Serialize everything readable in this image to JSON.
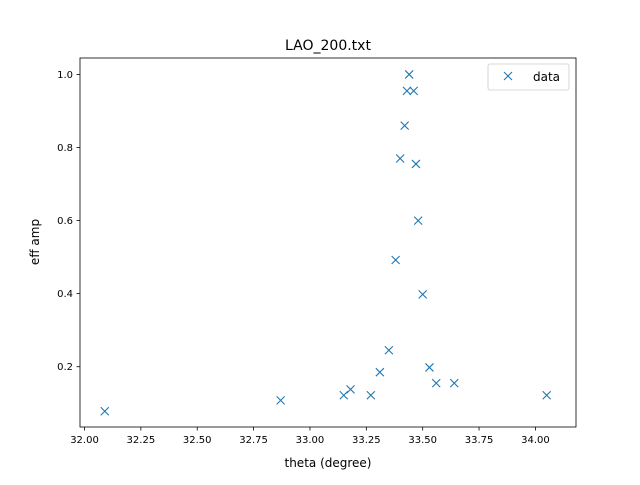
{
  "chart_data": {
    "type": "scatter",
    "title": "LAO_200.txt",
    "xlabel": "theta (degree)",
    "ylabel": "eff amp",
    "xlim": [
      31.98,
      34.18
    ],
    "ylim": [
      0.035,
      1.045
    ],
    "xticks": [
      "32.00",
      "32.25",
      "32.50",
      "32.75",
      "33.00",
      "33.25",
      "33.50",
      "33.75",
      "34.00"
    ],
    "yticks": [
      "0.2",
      "0.4",
      "0.6",
      "0.8",
      "1.0"
    ],
    "grid": false,
    "legend_position": "top-right",
    "marker": "x",
    "color": "#1f77b4",
    "series": [
      {
        "name": "data",
        "points": [
          {
            "x": 32.09,
            "y": 0.078
          },
          {
            "x": 32.87,
            "y": 0.108
          },
          {
            "x": 33.15,
            "y": 0.122
          },
          {
            "x": 33.18,
            "y": 0.138
          },
          {
            "x": 33.27,
            "y": 0.122
          },
          {
            "x": 33.31,
            "y": 0.185
          },
          {
            "x": 33.35,
            "y": 0.245
          },
          {
            "x": 33.38,
            "y": 0.492
          },
          {
            "x": 33.4,
            "y": 0.77
          },
          {
            "x": 33.42,
            "y": 0.86
          },
          {
            "x": 33.43,
            "y": 0.955
          },
          {
            "x": 33.44,
            "y": 1.0
          },
          {
            "x": 33.46,
            "y": 0.955
          },
          {
            "x": 33.47,
            "y": 0.755
          },
          {
            "x": 33.48,
            "y": 0.6
          },
          {
            "x": 33.5,
            "y": 0.398
          },
          {
            "x": 33.53,
            "y": 0.198
          },
          {
            "x": 33.56,
            "y": 0.155
          },
          {
            "x": 33.64,
            "y": 0.155
          },
          {
            "x": 34.05,
            "y": 0.122
          }
        ]
      }
    ]
  }
}
